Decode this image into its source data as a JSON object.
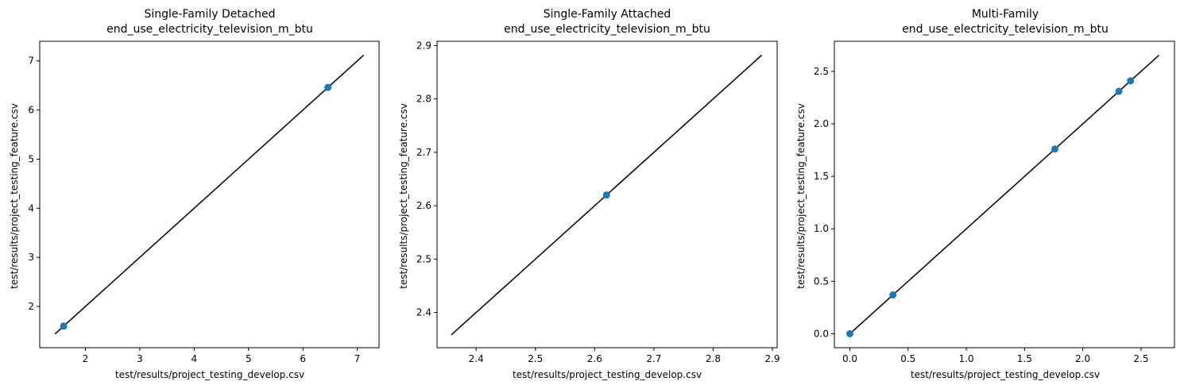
{
  "chart_data": [
    {
      "type": "scatter",
      "title": "Single-Family Detached",
      "subtitle": "end_use_electricity_television_m_btu",
      "xlabel": "test/results/project_testing_develop.csv",
      "ylabel": "test/results/project_testing_feature.csv",
      "xlim": [
        1.16,
        7.4
      ],
      "ylim": [
        1.16,
        7.4
      ],
      "xticks": [
        2,
        3,
        4,
        5,
        6,
        7
      ],
      "yticks": [
        2,
        3,
        4,
        5,
        6,
        7
      ],
      "identity_line": [
        1.44,
        7.12
      ],
      "points": [
        {
          "x": 1.6,
          "y": 1.6
        },
        {
          "x": 6.46,
          "y": 6.46
        }
      ],
      "grid": false,
      "colors": {
        "points": "#1f77b4",
        "line": "#000000"
      }
    },
    {
      "type": "scatter",
      "title": "Single-Family Attached",
      "subtitle": "end_use_electricity_television_m_btu",
      "xlabel": "test/results/project_testing_develop.csv",
      "ylabel": "test/results/project_testing_feature.csv",
      "xlim": [
        2.334,
        2.908
      ],
      "ylim": [
        2.334,
        2.908
      ],
      "xticks": [
        2.4,
        2.5,
        2.6,
        2.7,
        2.8,
        2.9
      ],
      "yticks": [
        2.4,
        2.5,
        2.6,
        2.7,
        2.8,
        2.9
      ],
      "identity_line": [
        2.358,
        2.882
      ],
      "points": [
        {
          "x": 2.62,
          "y": 2.62
        }
      ],
      "grid": false,
      "colors": {
        "points": "#1f77b4",
        "line": "#000000"
      }
    },
    {
      "type": "scatter",
      "title": "Multi-Family",
      "subtitle": "end_use_electricity_television_m_btu",
      "xlabel": "test/results/project_testing_develop.csv",
      "ylabel": "test/results/project_testing_feature.csv",
      "xlim": [
        -0.133,
        2.787
      ],
      "ylim": [
        -0.133,
        2.787
      ],
      "xticks": [
        0.0,
        0.5,
        1.0,
        1.5,
        2.0,
        2.5
      ],
      "yticks": [
        0.0,
        0.5,
        1.0,
        1.5,
        2.0,
        2.5
      ],
      "identity_line": [
        0.0,
        2.654
      ],
      "points": [
        {
          "x": 0.0,
          "y": 0.0
        },
        {
          "x": 0.37,
          "y": 0.37
        },
        {
          "x": 1.76,
          "y": 1.76
        },
        {
          "x": 2.31,
          "y": 2.31
        },
        {
          "x": 2.41,
          "y": 2.41
        }
      ],
      "grid": false,
      "colors": {
        "points": "#1f77b4",
        "line": "#000000"
      }
    }
  ]
}
